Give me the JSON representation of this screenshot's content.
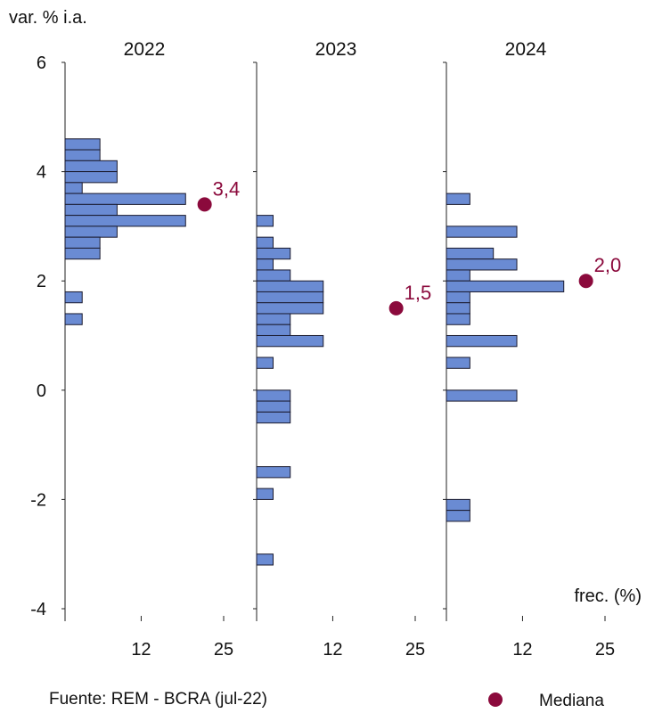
{
  "chart_data": {
    "type": "bar",
    "orientation": "horizontal",
    "ylabel": "var. % i.a.",
    "xlabel": "frec. (%)",
    "ylim": [
      -4,
      6
    ],
    "yticks": [
      "6",
      "4",
      "2",
      "0",
      "-2",
      "-4"
    ],
    "ytick_values": [
      6,
      4,
      2,
      0,
      -2,
      -4
    ],
    "xlim": [
      0,
      25
    ],
    "xticks": [
      "12",
      "25"
    ],
    "xtick_values": [
      12,
      25
    ],
    "bar_color": "#6a8bd3",
    "median_color": "#8b0a3c",
    "source": "Fuente: REM - BCRA (jul-22)",
    "legend": {
      "label": "Mediana",
      "position": "bottom-right"
    },
    "panels": [
      {
        "title": "2022",
        "median": 3.4,
        "median_label": "3,4",
        "bars": [
          {
            "y": 4.5,
            "v": 5.5
          },
          {
            "y": 4.3,
            "v": 5.5
          },
          {
            "y": 4.1,
            "v": 8.2
          },
          {
            "y": 3.9,
            "v": 8.2
          },
          {
            "y": 3.7,
            "v": 2.7
          },
          {
            "y": 3.5,
            "v": 19
          },
          {
            "y": 3.3,
            "v": 8.2
          },
          {
            "y": 3.1,
            "v": 19
          },
          {
            "y": 2.9,
            "v": 8.2
          },
          {
            "y": 2.7,
            "v": 5.5
          },
          {
            "y": 2.5,
            "v": 5.5
          },
          {
            "y": 1.7,
            "v": 2.7
          },
          {
            "y": 1.3,
            "v": 2.7
          }
        ]
      },
      {
        "title": "2023",
        "median": 1.5,
        "median_label": "1,5",
        "bars": [
          {
            "y": 3.1,
            "v": 2.6
          },
          {
            "y": 2.7,
            "v": 2.6
          },
          {
            "y": 2.5,
            "v": 5.3
          },
          {
            "y": 2.3,
            "v": 2.6
          },
          {
            "y": 2.1,
            "v": 5.3
          },
          {
            "y": 1.9,
            "v": 10.5
          },
          {
            "y": 1.7,
            "v": 10.5
          },
          {
            "y": 1.5,
            "v": 10.5
          },
          {
            "y": 1.3,
            "v": 5.3
          },
          {
            "y": 1.1,
            "v": 5.3
          },
          {
            "y": 0.9,
            "v": 10.5
          },
          {
            "y": 0.5,
            "v": 2.6
          },
          {
            "y": -0.1,
            "v": 5.3
          },
          {
            "y": -0.3,
            "v": 5.3
          },
          {
            "y": -0.5,
            "v": 5.3
          },
          {
            "y": -1.5,
            "v": 5.3
          },
          {
            "y": -1.9,
            "v": 2.6
          },
          {
            "y": -3.1,
            "v": 2.6
          }
        ]
      },
      {
        "title": "2024",
        "median": 2.0,
        "median_label": "2,0",
        "bars": [
          {
            "y": 3.5,
            "v": 3.7
          },
          {
            "y": 2.9,
            "v": 11.1
          },
          {
            "y": 2.5,
            "v": 7.4
          },
          {
            "y": 2.3,
            "v": 11.1
          },
          {
            "y": 2.1,
            "v": 3.7
          },
          {
            "y": 1.9,
            "v": 18.5
          },
          {
            "y": 1.7,
            "v": 3.7
          },
          {
            "y": 1.5,
            "v": 3.7
          },
          {
            "y": 1.3,
            "v": 3.7
          },
          {
            "y": 0.9,
            "v": 11.1
          },
          {
            "y": 0.5,
            "v": 3.7
          },
          {
            "y": -0.1,
            "v": 11.1
          },
          {
            "y": -2.1,
            "v": 3.7
          },
          {
            "y": -2.3,
            "v": 3.7
          }
        ]
      }
    ]
  }
}
